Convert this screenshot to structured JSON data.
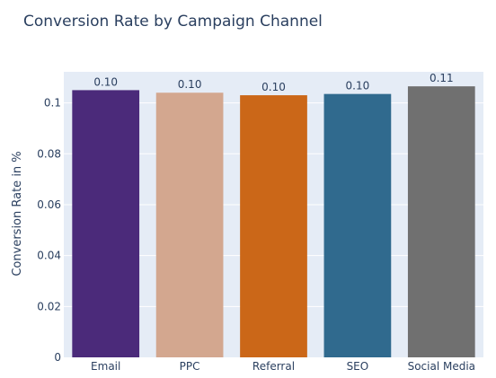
{
  "chart_data": {
    "type": "bar",
    "title": "Conversion Rate by Campaign Channel",
    "xlabel": "",
    "ylabel": "Conversion Rate in %",
    "categories": [
      "Email",
      "PPC",
      "Referral",
      "SEO",
      "Social Media"
    ],
    "values": [
      0.105,
      0.104,
      0.103,
      0.1035,
      0.1065
    ],
    "data_labels": [
      "0.10",
      "0.10",
      "0.10",
      "0.10",
      "0.11"
    ],
    "colors": [
      "#4b2a7a",
      "#d3a78f",
      "#cb6718",
      "#306a8e",
      "#707070"
    ],
    "ylim": [
      0,
      0.1122
    ],
    "yticks": [
      0,
      0.02,
      0.04,
      0.06,
      0.08,
      0.1
    ],
    "ytick_labels": [
      "0",
      "0.02",
      "0.04",
      "0.06",
      "0.08",
      "0.1"
    ],
    "grid": true,
    "plot_background": "#e5ecf6",
    "gridline_color": "#ffffff",
    "text_color": "#2a3f5f"
  }
}
